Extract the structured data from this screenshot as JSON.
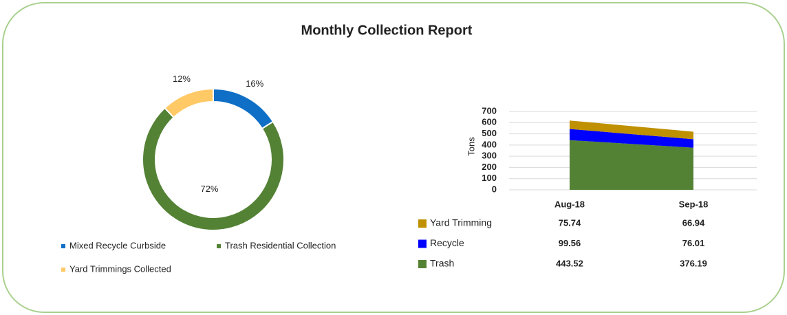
{
  "title": "Monthly  Collection Report",
  "chart_data": [
    {
      "type": "donut",
      "categories": [
        "Mixed Recycle Curbside",
        "Trash Residential Collection",
        "Yard Trimmings Collected"
      ],
      "values": [
        16,
        72,
        12
      ],
      "value_labels": [
        "16%",
        "72%",
        "12%"
      ],
      "colors": [
        "#0f6fc6",
        "#548235",
        "#ffc966"
      ],
      "legend": "bottom"
    },
    {
      "type": "stacked-area",
      "categories": [
        "Aug-18",
        "Sep-18"
      ],
      "ylabel": "Tons",
      "ylim": [
        0,
        700
      ],
      "yticks": [
        0,
        100,
        200,
        300,
        400,
        500,
        600,
        700
      ],
      "grid": true,
      "series": [
        {
          "name": "Trash",
          "color": "#548235",
          "values": [
            443.52,
            376.19
          ]
        },
        {
          "name": "Recycle",
          "color": "#0000ff",
          "values": [
            99.56,
            76.01
          ]
        },
        {
          "name": "Yard Trimming",
          "color": "#bf9000",
          "values": [
            75.74,
            66.94
          ]
        }
      ]
    }
  ]
}
